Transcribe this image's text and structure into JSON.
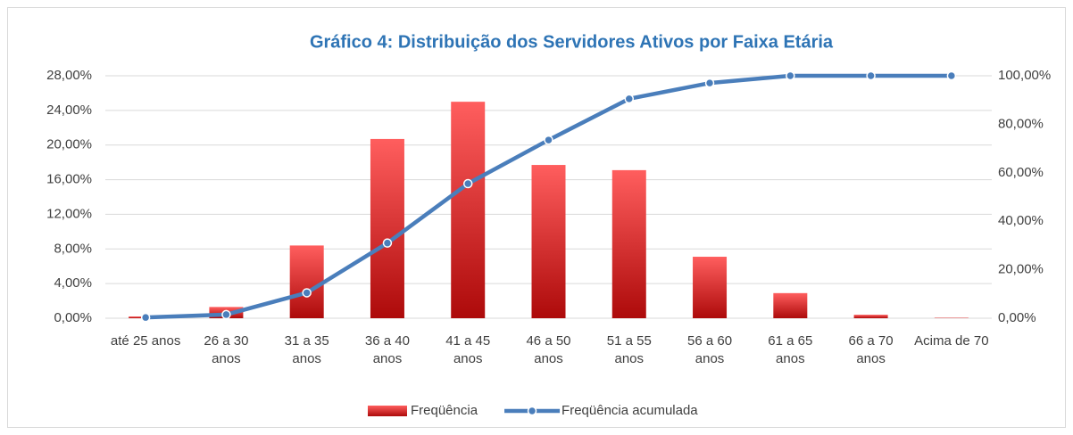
{
  "chart_data": {
    "type": "bar",
    "title": "Gráfico 4: Distribuição dos Servidores Ativos por Faixa Etária",
    "categories": [
      "até 25 anos",
      "26 a 30 anos",
      "31 a 35 anos",
      "36 a 40 anos",
      "41 a 45 anos",
      "46 a 50 anos",
      "51 a 55 anos",
      "56 a 60 anos",
      "61 a 65 anos",
      "66 a 70 anos",
      "Acima de 70"
    ],
    "series": [
      {
        "name": "Freqüência",
        "type": "bar",
        "color": "#e02424",
        "values": [
          0.2,
          1.3,
          8.4,
          20.7,
          25.0,
          17.7,
          17.1,
          7.1,
          2.9,
          0.4,
          0.05
        ]
      },
      {
        "name": "Freqüência acumulada",
        "type": "line",
        "axis": "y2",
        "color": "#4a7ebb",
        "values": [
          0.3,
          1.5,
          10.5,
          31.0,
          55.5,
          73.5,
          90.5,
          97.0,
          100,
          100,
          100
        ]
      }
    ],
    "ylim": [
      0,
      28
    ],
    "yticks": [
      {
        "value": 0,
        "label": "0,00%"
      },
      {
        "value": 4,
        "label": "4,00%"
      },
      {
        "value": 8,
        "label": "8,00%"
      },
      {
        "value": 12,
        "label": "12,00%"
      },
      {
        "value": 16,
        "label": "16,00%"
      },
      {
        "value": 20,
        "label": "20,00%"
      },
      {
        "value": 24,
        "label": "24,00%"
      },
      {
        "value": 28,
        "label": "28,00%"
      }
    ],
    "y2lim": [
      0,
      100
    ],
    "y2ticks": [
      {
        "value": 0,
        "label": "0,00%"
      },
      {
        "value": 20,
        "label": "20,00%"
      },
      {
        "value": 40,
        "label": "40,00%"
      },
      {
        "value": 60,
        "label": "60,00%"
      },
      {
        "value": 80,
        "label": "80,00%"
      },
      {
        "value": 100,
        "label": "100,00%"
      }
    ],
    "grid": true,
    "legend": "bottom"
  }
}
